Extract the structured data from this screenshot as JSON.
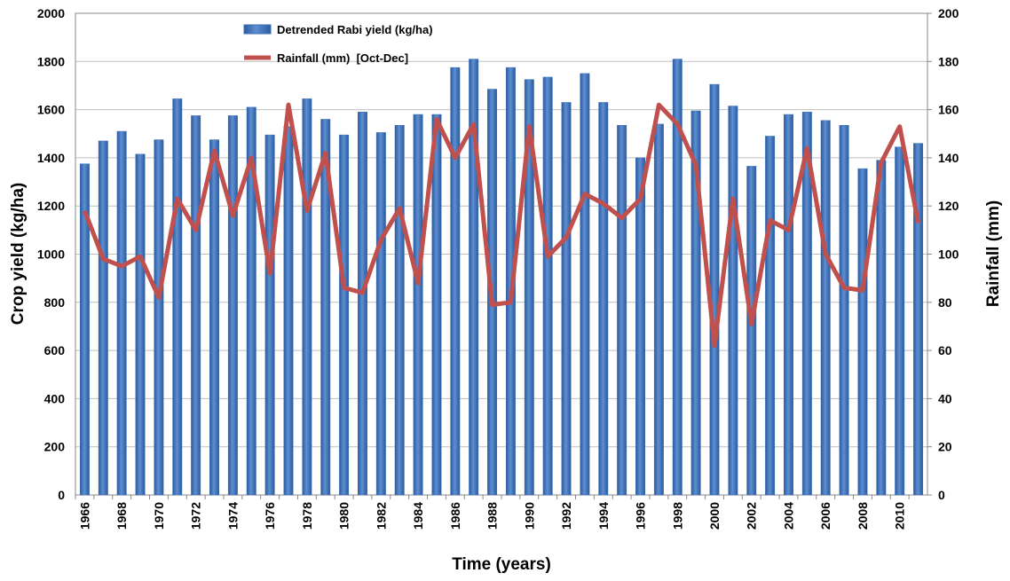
{
  "chart_data": {
    "type": "bar_line",
    "x_label": "Time (years)",
    "y_label": "Crop yield (kg/ha)",
    "y2_label": "Rainfall (mm)",
    "categories": [
      "1966",
      null,
      "1968",
      null,
      "1970",
      null,
      "1972",
      null,
      "1974",
      null,
      "1976",
      null,
      "1978",
      null,
      "1980",
      null,
      "1982",
      null,
      "1984",
      null,
      "1986",
      null,
      "1988",
      null,
      "1990",
      null,
      "1992",
      null,
      "1994",
      null,
      "1996",
      null,
      "1998",
      null,
      "2000",
      null,
      "2002",
      null,
      "2004",
      null,
      "2006",
      null,
      "2008",
      null,
      "2010",
      null
    ],
    "series": [
      {
        "name": "Detrended Rabi yield (kg/ha)",
        "color": "#3b6fb6",
        "type": "bar",
        "values": [
          1375,
          1470,
          1510,
          1415,
          1475,
          1645,
          1575,
          1475,
          1575,
          1610,
          1495,
          1530,
          1645,
          1560,
          1495,
          1590,
          1505,
          1535,
          1580,
          1580,
          1775,
          1810,
          1685,
          1775,
          1725,
          1735,
          1630,
          1750,
          1630,
          1535,
          1400,
          1540,
          1810,
          1595,
          1705,
          1615,
          1365,
          1490,
          1580,
          1590,
          1555,
          1535,
          1355,
          1390,
          1445,
          1460
        ]
      },
      {
        "name": "Rainfall (mm)  [Oct-Dec]",
        "color": "#c0504d",
        "type": "line",
        "axis": "y2",
        "values": [
          118,
          98,
          95,
          99,
          82,
          123,
          110,
          143,
          116,
          140,
          92,
          162,
          118,
          142,
          86,
          84,
          106,
          119,
          88,
          156,
          140,
          154,
          79,
          80,
          153,
          99,
          107,
          125,
          121,
          115,
          123,
          162,
          154,
          137,
          62,
          123,
          71,
          114,
          110,
          144,
          100,
          86,
          85,
          138,
          153,
          113
        ]
      }
    ],
    "ylim": [
      0,
      2000
    ],
    "yticks": [
      0,
      200,
      400,
      600,
      800,
      1000,
      1200,
      1400,
      1600,
      1800,
      2000
    ],
    "y2lim": [
      0,
      200
    ],
    "y2ticks": [
      0,
      20,
      40,
      60,
      80,
      100,
      120,
      140,
      160,
      180,
      200
    ],
    "grid": true
  }
}
